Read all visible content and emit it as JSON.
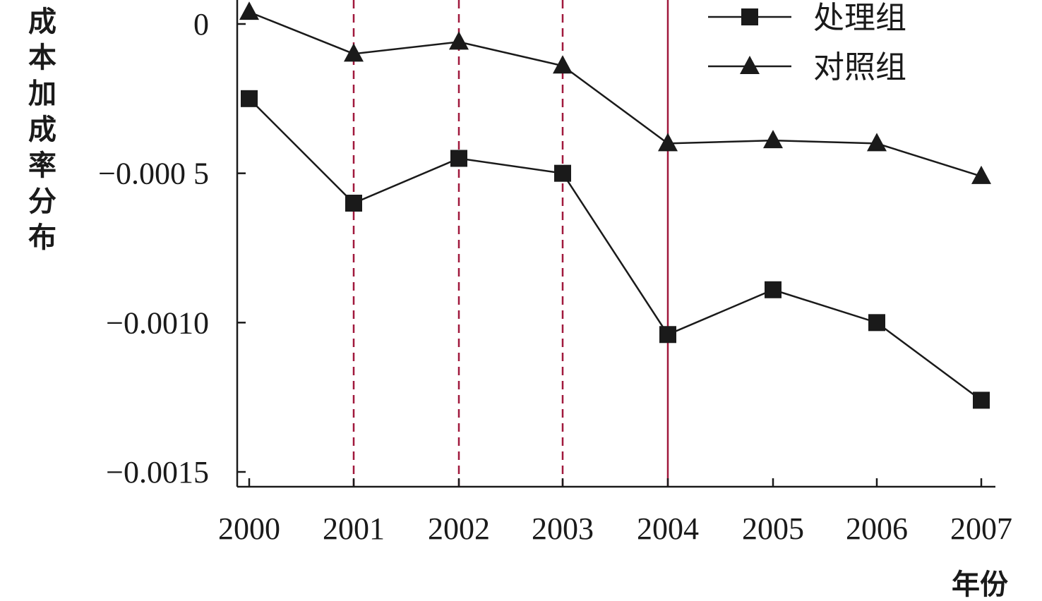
{
  "chart_data": {
    "type": "line",
    "title": "",
    "xlabel": "年份",
    "ylabel": "成本加成率分布",
    "categories": [
      "2000",
      "2001",
      "2002",
      "2003",
      "2004",
      "2005",
      "2006",
      "2007"
    ],
    "y_ticks": [
      0,
      -0.0005,
      -0.001,
      -0.0015
    ],
    "y_tick_labels": [
      "0",
      "−0.000 5",
      "−0.0010",
      "−0.0015"
    ],
    "ylim": [
      -0.0015,
      4e-05
    ],
    "grid": false,
    "legend_position": "top-right",
    "series": [
      {
        "name": "处理组",
        "marker": "square",
        "color": "#1a1a1a",
        "values": [
          -0.00025,
          -0.0006,
          -0.00045,
          -0.0005,
          -0.00104,
          -0.00089,
          -0.001,
          -0.00126
        ]
      },
      {
        "name": "对照组",
        "marker": "triangle",
        "color": "#1a1a1a",
        "values": [
          4e-05,
          -0.0001,
          -6e-05,
          -0.00014,
          -0.0004,
          -0.00039,
          -0.0004,
          -0.00051
        ]
      }
    ],
    "reference_lines": [
      {
        "x": "2001",
        "style": "dashed",
        "color": "#a0183c"
      },
      {
        "x": "2002",
        "style": "dashed",
        "color": "#a0183c"
      },
      {
        "x": "2003",
        "style": "dashed",
        "color": "#a0183c"
      },
      {
        "x": "2004",
        "style": "solid",
        "color": "#a0183c"
      }
    ]
  }
}
